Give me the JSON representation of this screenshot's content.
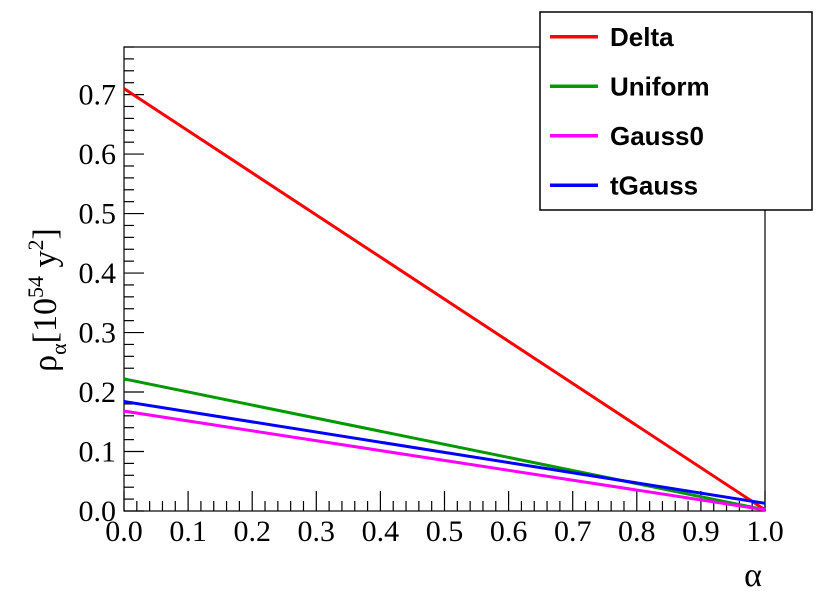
{
  "chart_data": {
    "type": "line",
    "xlabel": "α",
    "ylabel": {
      "symbol": "ρ",
      "subscript": "α",
      "unit_open": "[10",
      "unit_exp": "54",
      "unit_mid": " y",
      "unit_exp2": "2",
      "unit_close": "]"
    },
    "xlim": [
      0.0,
      1.0
    ],
    "ylim": [
      0.0,
      0.78
    ],
    "x_ticks": [
      0.0,
      0.1,
      0.2,
      0.3,
      0.4,
      0.5,
      0.6,
      0.7,
      0.8,
      0.9,
      1.0
    ],
    "x_tick_labels": [
      "0.0",
      "0.1",
      "0.2",
      "0.3",
      "0.4",
      "0.5",
      "0.6",
      "0.7",
      "0.8",
      "0.9",
      "1.0"
    ],
    "y_ticks": [
      0.0,
      0.1,
      0.2,
      0.3,
      0.4,
      0.5,
      0.6,
      0.7
    ],
    "y_tick_labels": [
      "0.0",
      "0.1",
      "0.2",
      "0.3",
      "0.4",
      "0.5",
      "0.6",
      "0.7"
    ],
    "grid": false,
    "legend_position": "top-right",
    "series": [
      {
        "name": "Delta",
        "color": "#ff0000",
        "x": [
          0.0,
          1.0
        ],
        "y": [
          0.71,
          0.002
        ]
      },
      {
        "name": "Uniform",
        "color": "#009900",
        "x": [
          0.0,
          1.0
        ],
        "y": [
          0.222,
          0.002
        ]
      },
      {
        "name": "Gauss0",
        "color": "#ff00ff",
        "x": [
          0.0,
          1.0
        ],
        "y": [
          0.168,
          0.002
        ]
      },
      {
        "name": "tGauss",
        "color": "#0000ff",
        "x": [
          0.0,
          1.0
        ],
        "y": [
          0.184,
          0.013
        ]
      }
    ]
  }
}
